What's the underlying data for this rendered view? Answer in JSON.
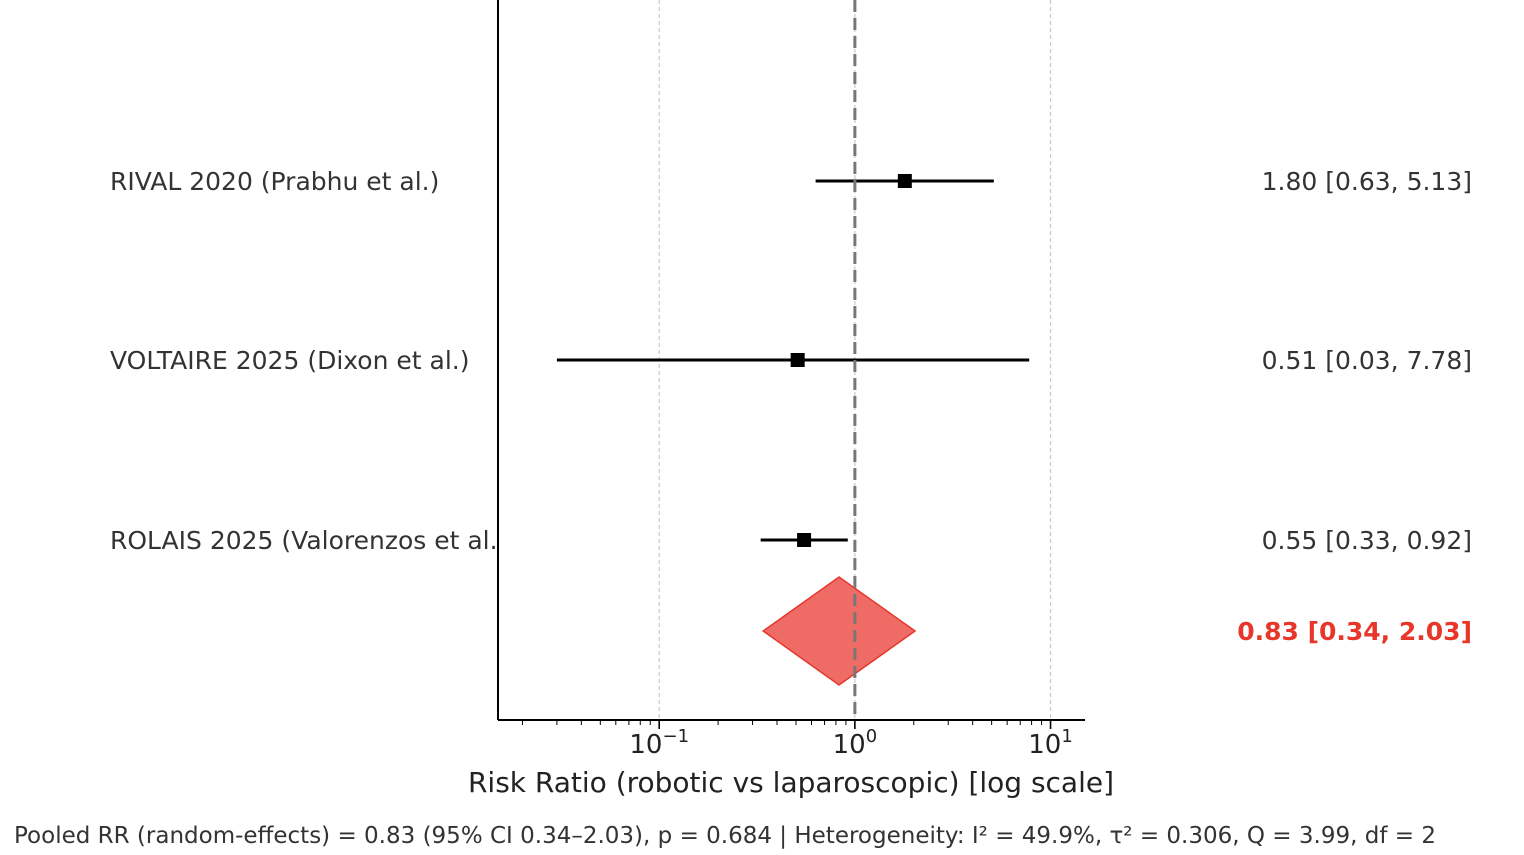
{
  "chart_data": {
    "type": "forest",
    "x_scale": "log",
    "xlim": [
      0.015,
      15
    ],
    "xlabel": "Risk Ratio (robotic vs laparoscopic) [log scale]",
    "xticks": [
      {
        "value": 0.1,
        "base": "10",
        "exp": "−1"
      },
      {
        "value": 1,
        "base": "10",
        "exp": "0"
      },
      {
        "value": 10,
        "base": "10",
        "exp": "1"
      }
    ],
    "reference_line": 1,
    "grid": "vertical dotted at major ticks",
    "studies": [
      {
        "label": "RIVAL 2020 (Prabhu et al.)",
        "rr": 1.8,
        "lo": 0.63,
        "hi": 5.13,
        "text": "1.80 [0.63, 5.13]"
      },
      {
        "label": "VOLTAIRE 2025 (Dixon et al.)",
        "rr": 0.51,
        "lo": 0.03,
        "hi": 7.78,
        "text": "0.51 [0.03, 7.78]"
      },
      {
        "label": "ROLAIS 2025 (Valorenzos et al.)",
        "rr": 0.55,
        "lo": 0.33,
        "hi": 0.92,
        "text": "0.55 [0.33, 0.92]"
      }
    ],
    "pooled": {
      "rr": 0.83,
      "lo": 0.34,
      "hi": 2.03,
      "text": "0.83 [0.34, 2.03]",
      "color": "#e8372a",
      "fill": "#ee6b66"
    },
    "footer": "Pooled RR (random-effects) = 0.83 (95% CI 0.34–2.03), p = 0.684 | Heterogeneity: I² = 49.9%, τ² = 0.306, Q = 3.99, df = 2"
  }
}
